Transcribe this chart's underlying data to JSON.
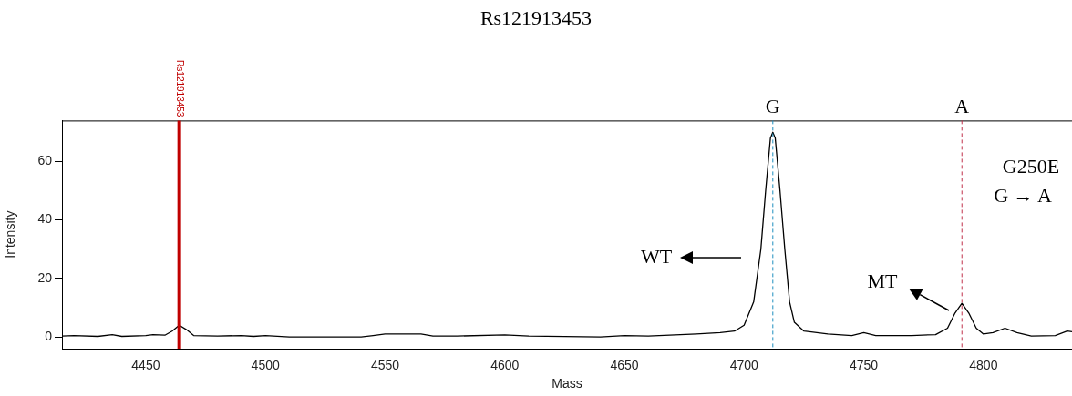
{
  "chart_data": {
    "type": "line",
    "title": "Rs121913453",
    "xlabel": "Mass",
    "ylabel": "Intensity",
    "x": [
      4415,
      4420,
      4430,
      4436,
      4440,
      4450,
      4453,
      4458,
      4461,
      4464,
      4467,
      4470,
      4480,
      4490,
      4495,
      4500,
      4510,
      4540,
      4545,
      4550,
      4565,
      4570,
      4580,
      4600,
      4610,
      4640,
      4650,
      4660,
      4680,
      4690,
      4696,
      4700,
      4704,
      4707,
      4709,
      4711,
      4712,
      4713,
      4715,
      4717,
      4719,
      4721,
      4725,
      4735,
      4745,
      4750,
      4755,
      4770,
      4780,
      4785,
      4788,
      4791,
      4794,
      4797,
      4800,
      4804,
      4809,
      4814,
      4820,
      4830,
      4835,
      4837
    ],
    "series": [
      {
        "color": "#000000",
        "values": [
          0.3,
          0.5,
          0.2,
          0.8,
          0.2,
          0.5,
          0.8,
          0.6,
          2,
          4,
          2.5,
          0.5,
          0.3,
          0.5,
          0.2,
          0.5,
          0,
          0,
          0.5,
          1,
          1,
          0.3,
          0.3,
          0.7,
          0.3,
          0,
          0.5,
          0.3,
          1,
          1.5,
          2,
          4,
          12,
          30,
          50,
          68,
          70,
          68,
          50,
          30,
          12,
          5,
          2,
          1,
          0.5,
          1.5,
          0.5,
          0.5,
          0.8,
          3,
          8,
          11.5,
          8,
          3,
          1,
          1.5,
          3,
          1.5,
          0.3,
          0.5,
          2,
          1.8
        ]
      }
    ],
    "xlim": [
      4415,
      4837
    ],
    "xticks": [
      4450,
      4500,
      4550,
      4600,
      4650,
      4700,
      4750,
      4800
    ],
    "ylim": [
      -4,
      74
    ],
    "yticks": [
      0,
      20,
      40,
      60
    ],
    "grid": false,
    "marker": "none",
    "line_style": "solid",
    "ref_lines": [
      {
        "axis": "x",
        "value": 4464,
        "label": "Rs121913453",
        "color": "#c00000",
        "line_style": "solid"
      },
      {
        "axis": "x",
        "value": 4712,
        "label": "G",
        "color": "#1f8fbf",
        "line_style": "dashed"
      },
      {
        "axis": "x",
        "value": 4791,
        "label": "A",
        "color": "#c0304a",
        "line_style": "dashed"
      }
    ],
    "annotations": [
      "WT",
      "MT",
      "G250E",
      "G → A"
    ]
  }
}
